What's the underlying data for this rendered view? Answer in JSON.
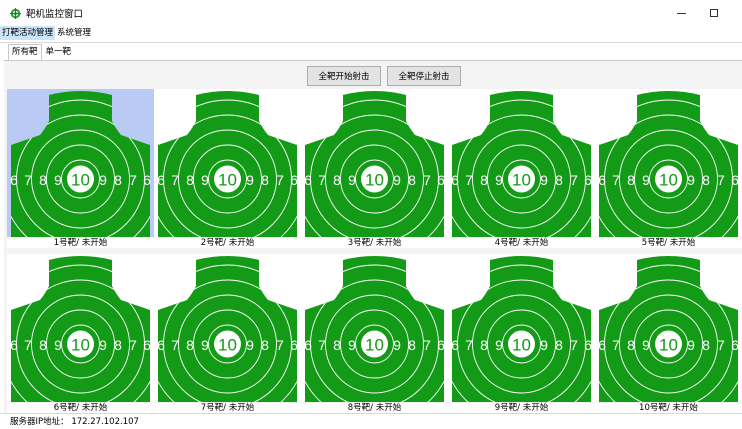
{
  "window": {
    "title": "靶机监控窗口",
    "icon": "target-crosshair-icon"
  },
  "menu": [
    {
      "label": "打靶活动管理",
      "active": true
    },
    {
      "label": "系统管理",
      "active": false
    }
  ],
  "tabs": [
    {
      "label": "所有靶",
      "active": true
    },
    {
      "label": "单一靶",
      "active": false
    }
  ],
  "toolbar": {
    "start_all_label": "全靶开始射击",
    "stop_all_label": "全靶停止射击"
  },
  "target_face": {
    "ring_numbers_left": [
      "6",
      "7",
      "8",
      "9"
    ],
    "center_number": "10",
    "ring_numbers_right": [
      "9",
      "8",
      "7",
      "6"
    ],
    "fill_color": "#139a17",
    "ring_color": "#ffffff"
  },
  "targets": [
    {
      "label": "1号靶/ 未开始",
      "selected": true
    },
    {
      "label": "2号靶/ 未开始",
      "selected": false
    },
    {
      "label": "3号靶/ 未开始",
      "selected": false
    },
    {
      "label": "4号靶/ 未开始",
      "selected": false
    },
    {
      "label": "5号靶/ 未开始",
      "selected": false
    },
    {
      "label": "6号靶/ 未开始",
      "selected": false
    },
    {
      "label": "7号靶/ 未开始",
      "selected": false
    },
    {
      "label": "8号靶/ 未开始",
      "selected": false
    },
    {
      "label": "9号靶/ 未开始",
      "selected": false
    },
    {
      "label": "10号靶/ 未开始",
      "selected": false
    }
  ],
  "status": {
    "server_ip_text": "服务器IP地址： 172.27.102.107"
  },
  "colors": {
    "selection": "#b9cbf5",
    "menu_active": "#cce4f7"
  }
}
